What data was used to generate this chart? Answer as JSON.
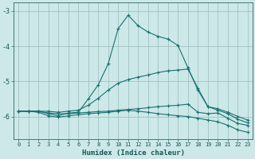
{
  "bg_color": "#cce8e8",
  "grid_color": "#99bbbb",
  "line_color": "#1a7070",
  "xlabel": "Humidex (Indice chaleur)",
  "xlim": [
    -0.5,
    23.5
  ],
  "ylim": [
    -6.65,
    -2.75
  ],
  "yticks": [
    -6,
    -5,
    -4,
    -3
  ],
  "xticks": [
    0,
    1,
    2,
    3,
    4,
    5,
    6,
    7,
    8,
    9,
    10,
    11,
    12,
    13,
    14,
    15,
    16,
    17,
    18,
    19,
    20,
    21,
    22,
    23
  ],
  "series": [
    {
      "x": [
        0,
        1,
        2,
        3,
        4,
        5,
        6,
        7,
        8,
        9,
        10,
        11,
        12,
        13,
        14,
        15,
        16,
        17,
        18,
        19,
        20,
        21,
        22,
        23
      ],
      "y": [
        -5.85,
        -5.85,
        -5.85,
        -5.9,
        -5.92,
        -5.92,
        -5.9,
        -5.88,
        -5.86,
        -5.85,
        -5.82,
        -5.8,
        -5.78,
        -5.75,
        -5.72,
        -5.7,
        -5.68,
        -5.65,
        -5.88,
        -5.92,
        -5.9,
        -6.05,
        -6.2,
        -6.25
      ]
    },
    {
      "x": [
        0,
        1,
        2,
        3,
        4,
        5,
        6,
        7,
        8,
        9,
        10,
        11,
        12,
        13,
        14,
        15,
        16,
        17,
        18,
        19,
        20,
        21,
        22,
        23
      ],
      "y": [
        -5.85,
        -5.85,
        -5.85,
        -5.92,
        -5.98,
        -5.9,
        -5.88,
        -5.5,
        -5.1,
        -4.5,
        -3.5,
        -3.12,
        -3.42,
        -3.6,
        -3.72,
        -3.8,
        -3.98,
        -4.62,
        -5.25,
        -5.72,
        -5.82,
        -5.92,
        -6.08,
        -6.18
      ]
    },
    {
      "x": [
        0,
        1,
        2,
        3,
        4,
        5,
        6,
        7,
        8,
        9,
        10,
        11,
        12,
        13,
        14,
        15,
        16,
        17,
        18,
        19,
        20,
        21,
        22,
        23
      ],
      "y": [
        -5.85,
        -5.85,
        -5.85,
        -5.85,
        -5.88,
        -5.85,
        -5.82,
        -5.68,
        -5.48,
        -5.25,
        -5.05,
        -4.95,
        -4.88,
        -4.82,
        -4.75,
        -4.7,
        -4.68,
        -4.65,
        -5.2,
        -5.72,
        -5.78,
        -5.88,
        -6.0,
        -6.1
      ]
    },
    {
      "x": [
        0,
        1,
        2,
        3,
        4,
        5,
        6,
        7,
        8,
        9,
        10,
        11,
        12,
        13,
        14,
        15,
        16,
        17,
        18,
        19,
        20,
        21,
        22,
        23
      ],
      "y": [
        -5.85,
        -5.85,
        -5.88,
        -5.98,
        -6.02,
        -5.98,
        -5.95,
        -5.92,
        -5.9,
        -5.88,
        -5.85,
        -5.82,
        -5.85,
        -5.88,
        -5.92,
        -5.95,
        -5.98,
        -6.0,
        -6.05,
        -6.1,
        -6.15,
        -6.25,
        -6.38,
        -6.45
      ]
    }
  ]
}
